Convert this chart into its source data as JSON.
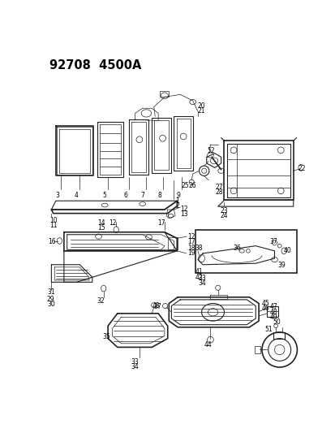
{
  "title": "92708  4500A",
  "bg_color": "#ffffff",
  "fig_width": 4.14,
  "fig_height": 5.33,
  "dpi": 100,
  "line_color": "#222222",
  "text_color": "#000000",
  "label_fontsize": 5.8,
  "title_fontsize": 10.5
}
